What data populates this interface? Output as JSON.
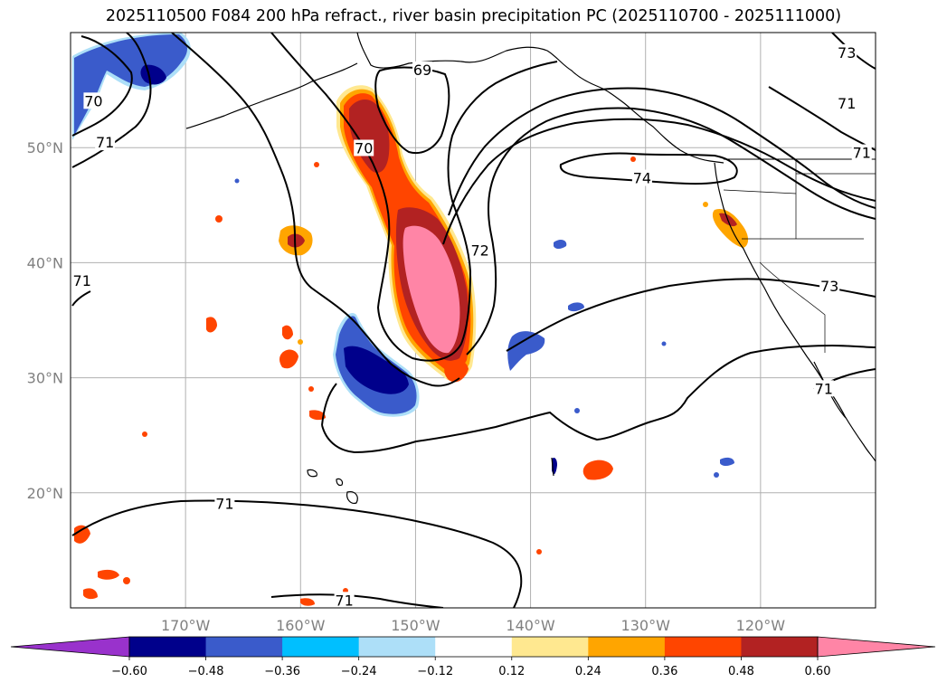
{
  "title": "2025110500 F084 200 hPa refract., river basin precipitation PC (2025110700 - 2025111000)",
  "map": {
    "projection": "PlateCarree",
    "extent": {
      "lon": [
        -180,
        -110
      ],
      "lat": [
        10,
        60
      ]
    },
    "lat_ticks": [
      {
        "value": 50,
        "label": "50°N"
      },
      {
        "value": 40,
        "label": "40°N"
      },
      {
        "value": 30,
        "label": "30°N"
      },
      {
        "value": 20,
        "label": "20°N"
      }
    ],
    "lon_ticks": [
      {
        "value": -170,
        "label": "170°W"
      },
      {
        "value": -160,
        "label": "160°W"
      },
      {
        "value": -150,
        "label": "150°W"
      },
      {
        "value": -140,
        "label": "140°W"
      },
      {
        "value": -130,
        "label": "130°W"
      },
      {
        "value": -120,
        "label": "120°W"
      }
    ],
    "gridlines": true,
    "contour_labels": [
      {
        "text": "69",
        "lon": -149.4,
        "lat": 56.7
      },
      {
        "text": "70",
        "lon": -154.5,
        "lat": 49.9
      },
      {
        "text": "70",
        "lon": -178.0,
        "lat": 54.0
      },
      {
        "text": "71",
        "lon": -177.0,
        "lat": 50.4
      },
      {
        "text": "71",
        "lon": -179.0,
        "lat": 38.4
      },
      {
        "text": "71",
        "lon": -166.6,
        "lat": 19.0
      },
      {
        "text": "71",
        "lon": -156.2,
        "lat": 10.6
      },
      {
        "text": "71",
        "lon": -112.5,
        "lat": 53.8
      },
      {
        "text": "71",
        "lon": -111.2,
        "lat": 49.5
      },
      {
        "text": "71",
        "lon": -114.5,
        "lat": 29.0
      },
      {
        "text": "72",
        "lon": -144.4,
        "lat": 41.0
      },
      {
        "text": "73",
        "lon": -112.5,
        "lat": 58.2
      },
      {
        "text": "73",
        "lon": -114.0,
        "lat": 37.9
      },
      {
        "text": "74",
        "lon": -130.3,
        "lat": 47.3
      }
    ]
  },
  "colorbar": {
    "levels": [
      -0.6,
      -0.48,
      -0.36,
      -0.24,
      -0.12,
      0.12,
      0.24,
      0.36,
      0.48,
      0.6
    ],
    "labels": [
      "−0.60",
      "−0.48",
      "−0.36",
      "−0.24",
      "−0.12",
      "0.12",
      "0.24",
      "0.36",
      "0.48",
      "0.60"
    ],
    "colors": [
      "#9932CC",
      "#00008B",
      "#3A5BCB",
      "#00BFFF",
      "#ADDFF8",
      "#FFFFFF",
      "#FFE890",
      "#FFA500",
      "#FF4500",
      "#B22222",
      "#FF85A6"
    ],
    "extend": "both"
  }
}
